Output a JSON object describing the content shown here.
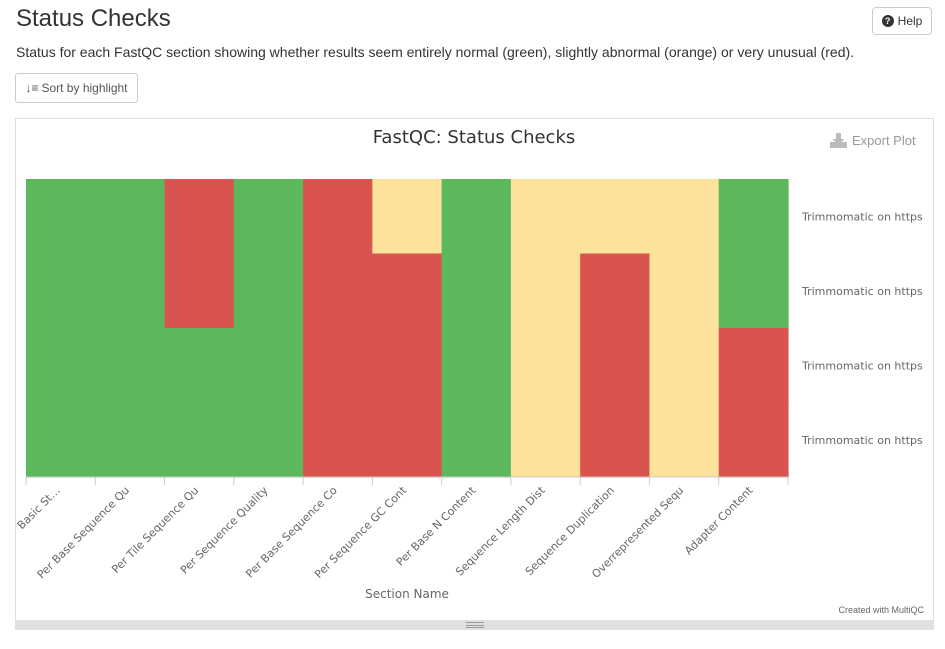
{
  "page": {
    "title": "Status Checks",
    "description": "Status for each FastQC section showing whether results seem entirely normal (green), slightly abnormal (orange) or very unusual (red).",
    "help_label": "Help",
    "sort_label": "Sort by highlight",
    "export_label": "Export Plot",
    "created_with": "Created with MultiQC"
  },
  "colors": {
    "pass": "#5cb85c",
    "warn": "#fce29a",
    "fail": "#d9534f"
  },
  "chart_data": {
    "type": "heatmap",
    "title": "FastQC: Status Checks",
    "xlabel": "Section Name",
    "ylabel": "",
    "categories": [
      "Basic St…",
      "Per Base Sequence Qu",
      "Per Tile Sequence Qu",
      "Per Sequence Quality",
      "Per Base Sequence Co",
      "Per Sequence GC Cont",
      "Per Base N Content",
      "Sequence Length Dist",
      "Sequence Duplication",
      "Overrepresented Sequ",
      "Adapter Content"
    ],
    "samples": [
      "Trimmomatic on https",
      "Trimmomatic on https",
      "Trimmomatic on https",
      "Trimmomatic on https"
    ],
    "values": [
      [
        "pass",
        "pass",
        "fail",
        "pass",
        "fail",
        "warn",
        "pass",
        "warn",
        "warn",
        "warn",
        "pass"
      ],
      [
        "pass",
        "pass",
        "fail",
        "pass",
        "fail",
        "fail",
        "pass",
        "warn",
        "fail",
        "warn",
        "pass"
      ],
      [
        "pass",
        "pass",
        "pass",
        "pass",
        "fail",
        "fail",
        "pass",
        "warn",
        "fail",
        "warn",
        "fail"
      ],
      [
        "pass",
        "pass",
        "pass",
        "pass",
        "fail",
        "fail",
        "pass",
        "warn",
        "fail",
        "warn",
        "fail"
      ]
    ]
  }
}
